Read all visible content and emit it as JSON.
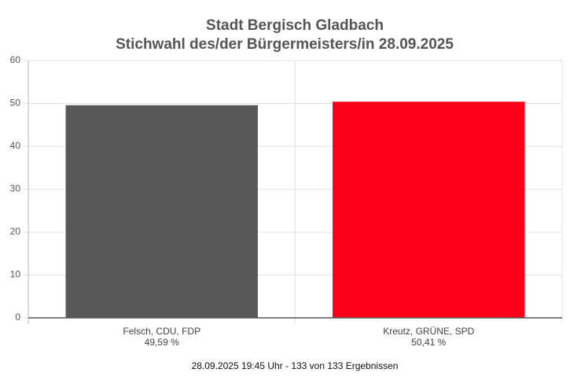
{
  "chart_data": {
    "type": "bar",
    "title": "Stadt Bergisch Gladbach",
    "subtitle": "Stichwahl des/der Bürgermeisters/in 28.09.2025",
    "categories": [
      "Felsch, CDU, FDP",
      "Kreutz, GRÜNE, SPD"
    ],
    "values": [
      49.59,
      50.41
    ],
    "value_labels": [
      "49,59 %",
      "50,41 %"
    ],
    "colors": [
      "#595959",
      "#ff001a"
    ],
    "ylim": [
      0,
      60
    ],
    "yticks": [
      0,
      10,
      20,
      30,
      40,
      50,
      60
    ],
    "grid": true,
    "caption": "28.09.2025 19:45 Uhr - 133 von 133 Ergebnissen"
  }
}
